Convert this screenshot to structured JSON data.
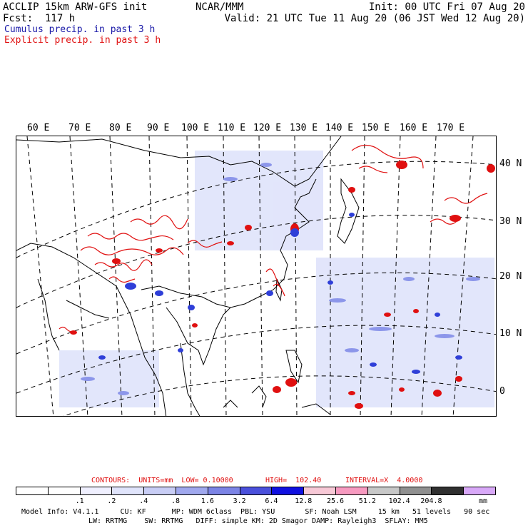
{
  "header": {
    "model_line": "ACCLIP 15km ARW-GFS init",
    "fcst_line": "Fcst:  117 h",
    "org": "NCAR/MMM",
    "init": "Init: 00 UTC Fri 07 Aug 20",
    "valid": "Valid: 21 UTC Tue 11 Aug 20 (06 JST Wed 12 Aug 20)",
    "cumulus": "Cumulus precip. in past 3 h",
    "explicit": "Explicit precip. in past 3 h"
  },
  "map": {
    "lon_labels": [
      "60 E",
      "70 E",
      "80 E",
      "90 E",
      "100 E",
      "110 E",
      "120 E",
      "130 E",
      "140 E",
      "150 E",
      "160 E",
      "170 E"
    ],
    "lat_labels": [
      "40 N",
      "30 N",
      "20 N",
      "10 N",
      "0"
    ],
    "colors": {
      "coast": "#000000",
      "grid": "#000000",
      "cumulus": "#2f3fd8",
      "explicit": "#e01010",
      "light_cumulus": "#c8cdf5"
    }
  },
  "contours": {
    "label": "CONTOURS:  UNITS=mm  LOW= 0.10000",
    "high": "HIGH=  102.40",
    "interval": "INTERVAL=X  4.0000"
  },
  "colorbar": {
    "colors": [
      "#ffffff",
      "#ffffff",
      "#f0f0ff",
      "#e0e4fb",
      "#c8cdf5",
      "#a0a8ee",
      "#7c84e6",
      "#4a50dc",
      "#1010e0",
      "#f7c8d6",
      "#f79ac0",
      "#c8c8c8",
      "#909090",
      "#303030",
      "#d8a8f8"
    ],
    "ticks": [
      ".1",
      ".2",
      ".4",
      ".8",
      "1.6",
      "3.2",
      "6.4",
      "12.8",
      "25.6",
      "51.2",
      "102.4",
      "204.8"
    ],
    "unit": "mm"
  },
  "footer": {
    "line1": "Model Info: V4.1.1     CU: KF      MP: WDM 6class  PBL: YSU       SF: Noah LSM     15 km   51 levels   90 sec",
    "line2": "LW: RRTMG    SW: RRTMG   DIFF: simple KM: 2D Smagor DAMP: Rayleigh3  SFLAY: MM5"
  }
}
